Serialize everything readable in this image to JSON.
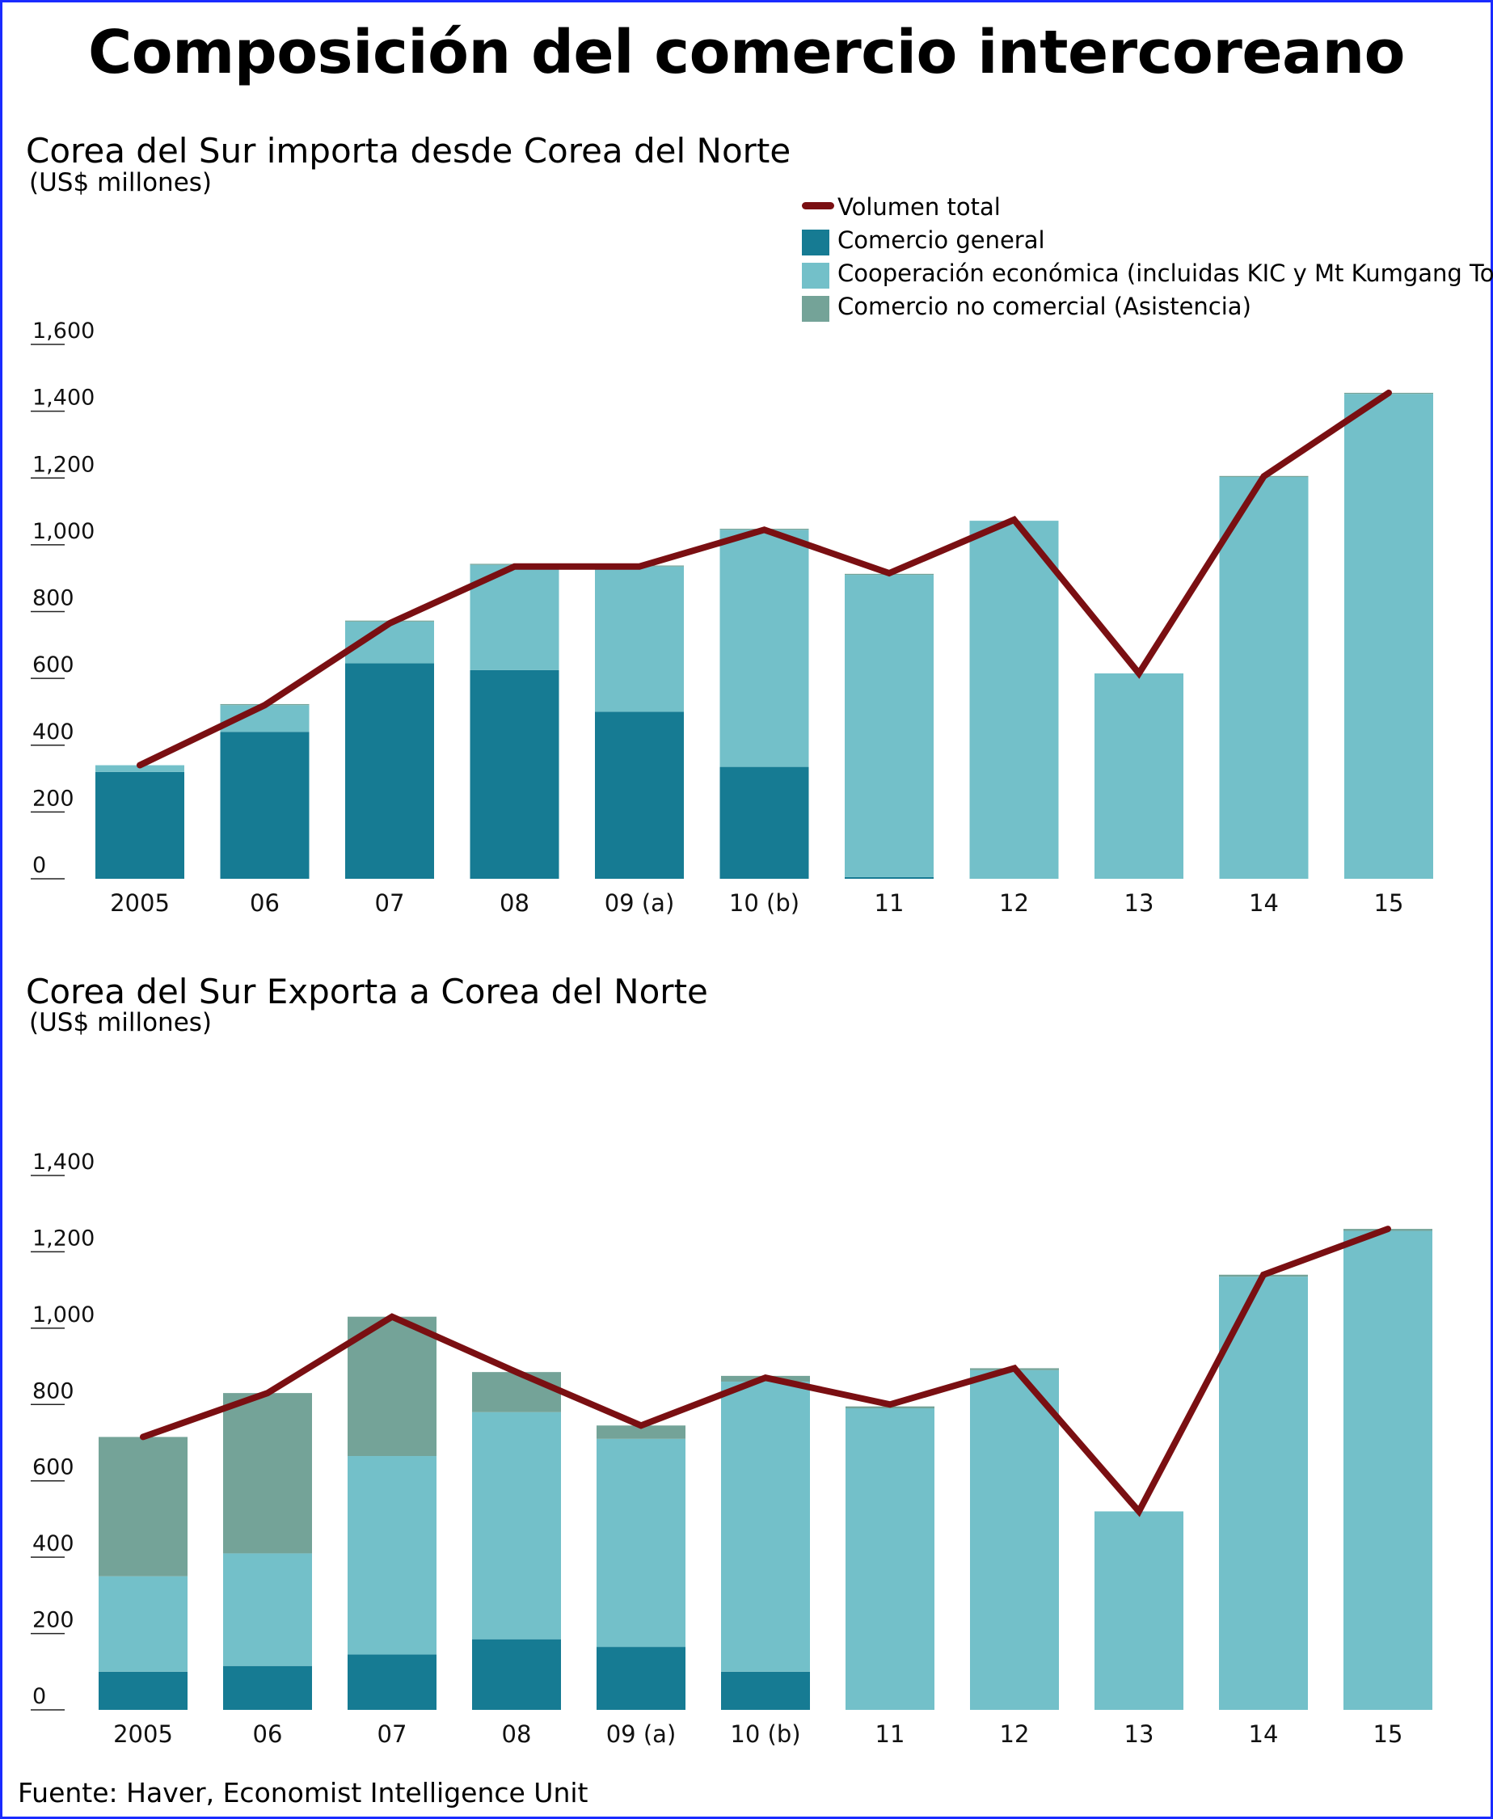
{
  "title": "Composición del comercio intercoreano",
  "legend": {
    "total": "Volumen total",
    "general": "Comercio general",
    "economic": "Cooperación económica (incluidas KIC y Mt Kumgang Tours)",
    "noncommercial": "Comercio no comercial (Asistencia)"
  },
  "colors": {
    "total": "#7a0f12",
    "general": "#167b93",
    "economic": "#73c0c9",
    "noncommercial": "#74a398"
  },
  "source": "Fuente:  Haver, Economist Intelligence Unit",
  "chart_data": [
    {
      "type": "bar",
      "stacked": true,
      "title": "Corea del Sur importa desde Corea del Norte",
      "ylabel": "(US$ millones)",
      "ylim": [
        0,
        1600
      ],
      "yticks": [
        0,
        200,
        400,
        600,
        800,
        1000,
        1200,
        1400,
        1600
      ],
      "ytick_labels": [
        "0",
        "200",
        "400",
        "600",
        "800",
        "1,000",
        "1,200",
        "1,400",
        "1,600"
      ],
      "categories": [
        "2005",
        "06",
        "07",
        "08",
        "09 (a)",
        "10 (b)",
        "11",
        "12",
        "13",
        "14",
        "15"
      ],
      "series": [
        {
          "name": "Comercio general",
          "key": "general",
          "values": [
            320,
            440,
            645,
            625,
            500,
            335,
            5,
            0,
            0,
            0,
            0
          ]
        },
        {
          "name": "Cooperación económica (incluidas KIC y Mt Kumgang Tours)",
          "key": "economic",
          "values": [
            20,
            80,
            125,
            315,
            435,
            710,
            905,
            1072,
            615,
            1203,
            1452
          ]
        },
        {
          "name": "Comercio no comercial (Asistencia)",
          "key": "noncommercial",
          "values": [
            0,
            3,
            3,
            3,
            3,
            3,
            3,
            0,
            0,
            3,
            3
          ]
        }
      ],
      "total": {
        "name": "Volumen total",
        "values": [
          340,
          520,
          765,
          935,
          935,
          1045,
          915,
          1075,
          615,
          1205,
          1455
        ]
      },
      "grid": false,
      "legend_position": "top-right"
    },
    {
      "type": "bar",
      "stacked": true,
      "title": "Corea del Sur Exporta a Corea del Norte",
      "ylabel": "(US$ millones)",
      "ylim": [
        0,
        1400
      ],
      "yticks": [
        0,
        200,
        400,
        600,
        800,
        1000,
        1200,
        1400
      ],
      "ytick_labels": [
        "0",
        "200",
        "400",
        "600",
        "800",
        "1,000",
        "1,200",
        "1,400"
      ],
      "categories": [
        "2005",
        "06",
        "07",
        "08",
        "09 (a)",
        "10 (b)",
        "11",
        "12",
        "13",
        "14",
        "15"
      ],
      "series": [
        {
          "name": "Comercio general",
          "key": "general",
          "values": [
            100,
            115,
            145,
            185,
            165,
            100,
            0,
            0,
            0,
            0,
            0
          ]
        },
        {
          "name": "Cooperación económica (incluidas KIC y Mt Kumgang Tours)",
          "key": "economic",
          "values": [
            250,
            295,
            520,
            595,
            545,
            760,
            790,
            890,
            520,
            1135,
            1255
          ]
        },
        {
          "name": "Comercio no comercial (Asistencia)",
          "key": "noncommercial",
          "values": [
            365,
            420,
            365,
            105,
            35,
            15,
            5,
            5,
            0,
            5,
            5
          ]
        }
      ],
      "total": {
        "name": "Volumen total",
        "values": [
          715,
          830,
          1030,
          885,
          745,
          870,
          800,
          895,
          520,
          1140,
          1260
        ]
      },
      "grid": false,
      "legend_position": "none"
    }
  ]
}
